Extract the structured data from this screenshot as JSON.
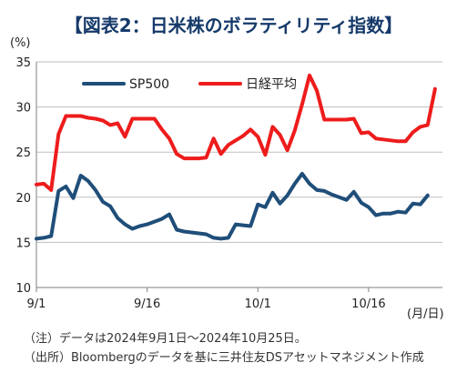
{
  "chart_data": {
    "type": "line",
    "title": "【図表2：日米株のボラティリティ指数】",
    "ylabel": "(%)",
    "xlabel": "(月/日)",
    "ylim": [
      10,
      35
    ],
    "yticks": [
      10,
      15,
      20,
      25,
      30,
      35
    ],
    "xticks": [
      {
        "label": "9/1",
        "day": 0
      },
      {
        "label": "9/16",
        "day": 15
      },
      {
        "label": "10/1",
        "day": 30
      },
      {
        "label": "10/16",
        "day": 45
      }
    ],
    "xlim_days": [
      0,
      55
    ],
    "grid": "horizontal",
    "legend_position": "top-left",
    "series": [
      {
        "name": "SP500",
        "color": "#1f4e79",
        "points": [
          [
            0,
            15.4
          ],
          [
            1,
            15.5
          ],
          [
            2,
            15.7
          ],
          [
            3,
            20.7
          ],
          [
            4,
            21.2
          ],
          [
            5,
            19.9
          ],
          [
            6,
            22.4
          ],
          [
            7,
            21.8
          ],
          [
            8,
            20.8
          ],
          [
            9,
            19.5
          ],
          [
            10,
            19.0
          ],
          [
            11,
            17.7
          ],
          [
            12,
            17.0
          ],
          [
            13,
            16.5
          ],
          [
            14,
            16.8
          ],
          [
            15,
            17.0
          ],
          [
            16,
            17.3
          ],
          [
            17,
            17.6
          ],
          [
            18,
            18.1
          ],
          [
            19,
            16.4
          ],
          [
            20,
            16.2
          ],
          [
            21,
            16.1
          ],
          [
            22,
            16.0
          ],
          [
            23,
            15.9
          ],
          [
            24,
            15.5
          ],
          [
            25,
            15.4
          ],
          [
            26,
            15.5
          ],
          [
            27,
            17.0
          ],
          [
            28,
            16.9
          ],
          [
            29,
            16.8
          ],
          [
            30,
            19.2
          ],
          [
            31,
            18.9
          ],
          [
            32,
            20.5
          ],
          [
            33,
            19.3
          ],
          [
            34,
            20.2
          ],
          [
            35,
            21.5
          ],
          [
            36,
            22.6
          ],
          [
            37,
            21.5
          ],
          [
            38,
            20.8
          ],
          [
            39,
            20.7
          ],
          [
            40,
            20.3
          ],
          [
            41,
            20.0
          ],
          [
            42,
            19.7
          ],
          [
            43,
            20.6
          ],
          [
            44,
            19.4
          ],
          [
            45,
            18.9
          ],
          [
            46,
            18.0
          ],
          [
            47,
            18.2
          ],
          [
            48,
            18.2
          ],
          [
            49,
            18.4
          ],
          [
            50,
            18.3
          ],
          [
            51,
            19.3
          ],
          [
            52,
            19.2
          ],
          [
            53,
            20.2
          ]
        ]
      },
      {
        "name": "日経平均",
        "color": "#ee1c1c",
        "points": [
          [
            0,
            21.4
          ],
          [
            1,
            21.5
          ],
          [
            2,
            20.8
          ],
          [
            3,
            27.0
          ],
          [
            4,
            29.0
          ],
          [
            5,
            29.0
          ],
          [
            6,
            29.0
          ],
          [
            7,
            28.8
          ],
          [
            8,
            28.7
          ],
          [
            9,
            28.5
          ],
          [
            10,
            28.0
          ],
          [
            11,
            28.2
          ],
          [
            12,
            26.7
          ],
          [
            13,
            28.7
          ],
          [
            14,
            28.7
          ],
          [
            15,
            28.7
          ],
          [
            16,
            28.7
          ],
          [
            17,
            27.5
          ],
          [
            18,
            26.5
          ],
          [
            19,
            24.8
          ],
          [
            20,
            24.3
          ],
          [
            21,
            24.3
          ],
          [
            22,
            24.3
          ],
          [
            23,
            24.4
          ],
          [
            24,
            26.5
          ],
          [
            25,
            24.8
          ],
          [
            26,
            25.8
          ],
          [
            27,
            26.3
          ],
          [
            28,
            26.8
          ],
          [
            29,
            27.5
          ],
          [
            30,
            26.7
          ],
          [
            31,
            24.7
          ],
          [
            32,
            27.8
          ],
          [
            33,
            26.9
          ],
          [
            34,
            25.2
          ],
          [
            35,
            27.4
          ],
          [
            36,
            30.3
          ],
          [
            37,
            33.5
          ],
          [
            38,
            31.8
          ],
          [
            39,
            28.6
          ],
          [
            40,
            28.6
          ],
          [
            41,
            28.6
          ],
          [
            42,
            28.6
          ],
          [
            43,
            28.7
          ],
          [
            44,
            27.1
          ],
          [
            45,
            27.2
          ],
          [
            46,
            26.5
          ],
          [
            47,
            26.4
          ],
          [
            48,
            26.3
          ],
          [
            49,
            26.2
          ],
          [
            50,
            26.2
          ],
          [
            51,
            27.2
          ],
          [
            52,
            27.8
          ],
          [
            53,
            28.0
          ],
          [
            54,
            32.0
          ]
        ]
      }
    ]
  },
  "notes": {
    "line1": "（注）データは2024年9月1日～2024年10月25日。",
    "line2": "（出所）Bloombergのデータを基に三井住友DSアセットマネジメント作成"
  }
}
